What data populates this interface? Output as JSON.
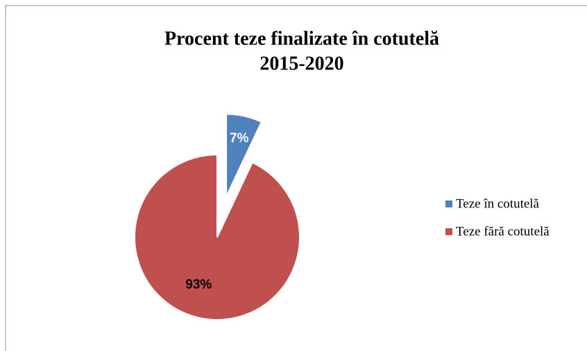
{
  "chart_data": {
    "type": "pie",
    "title": [
      "Procent teze finalizate în cotutelă",
      "2015-2020"
    ],
    "categories": [
      "Teze în cotutelă",
      "Teze fără cotutelă"
    ],
    "values": [
      7,
      93
    ],
    "value_labels": [
      "7%",
      "93%"
    ],
    "colors": [
      "#4f81bd",
      "#c0504d"
    ],
    "exploded": [
      true,
      false
    ],
    "legend": "right"
  }
}
